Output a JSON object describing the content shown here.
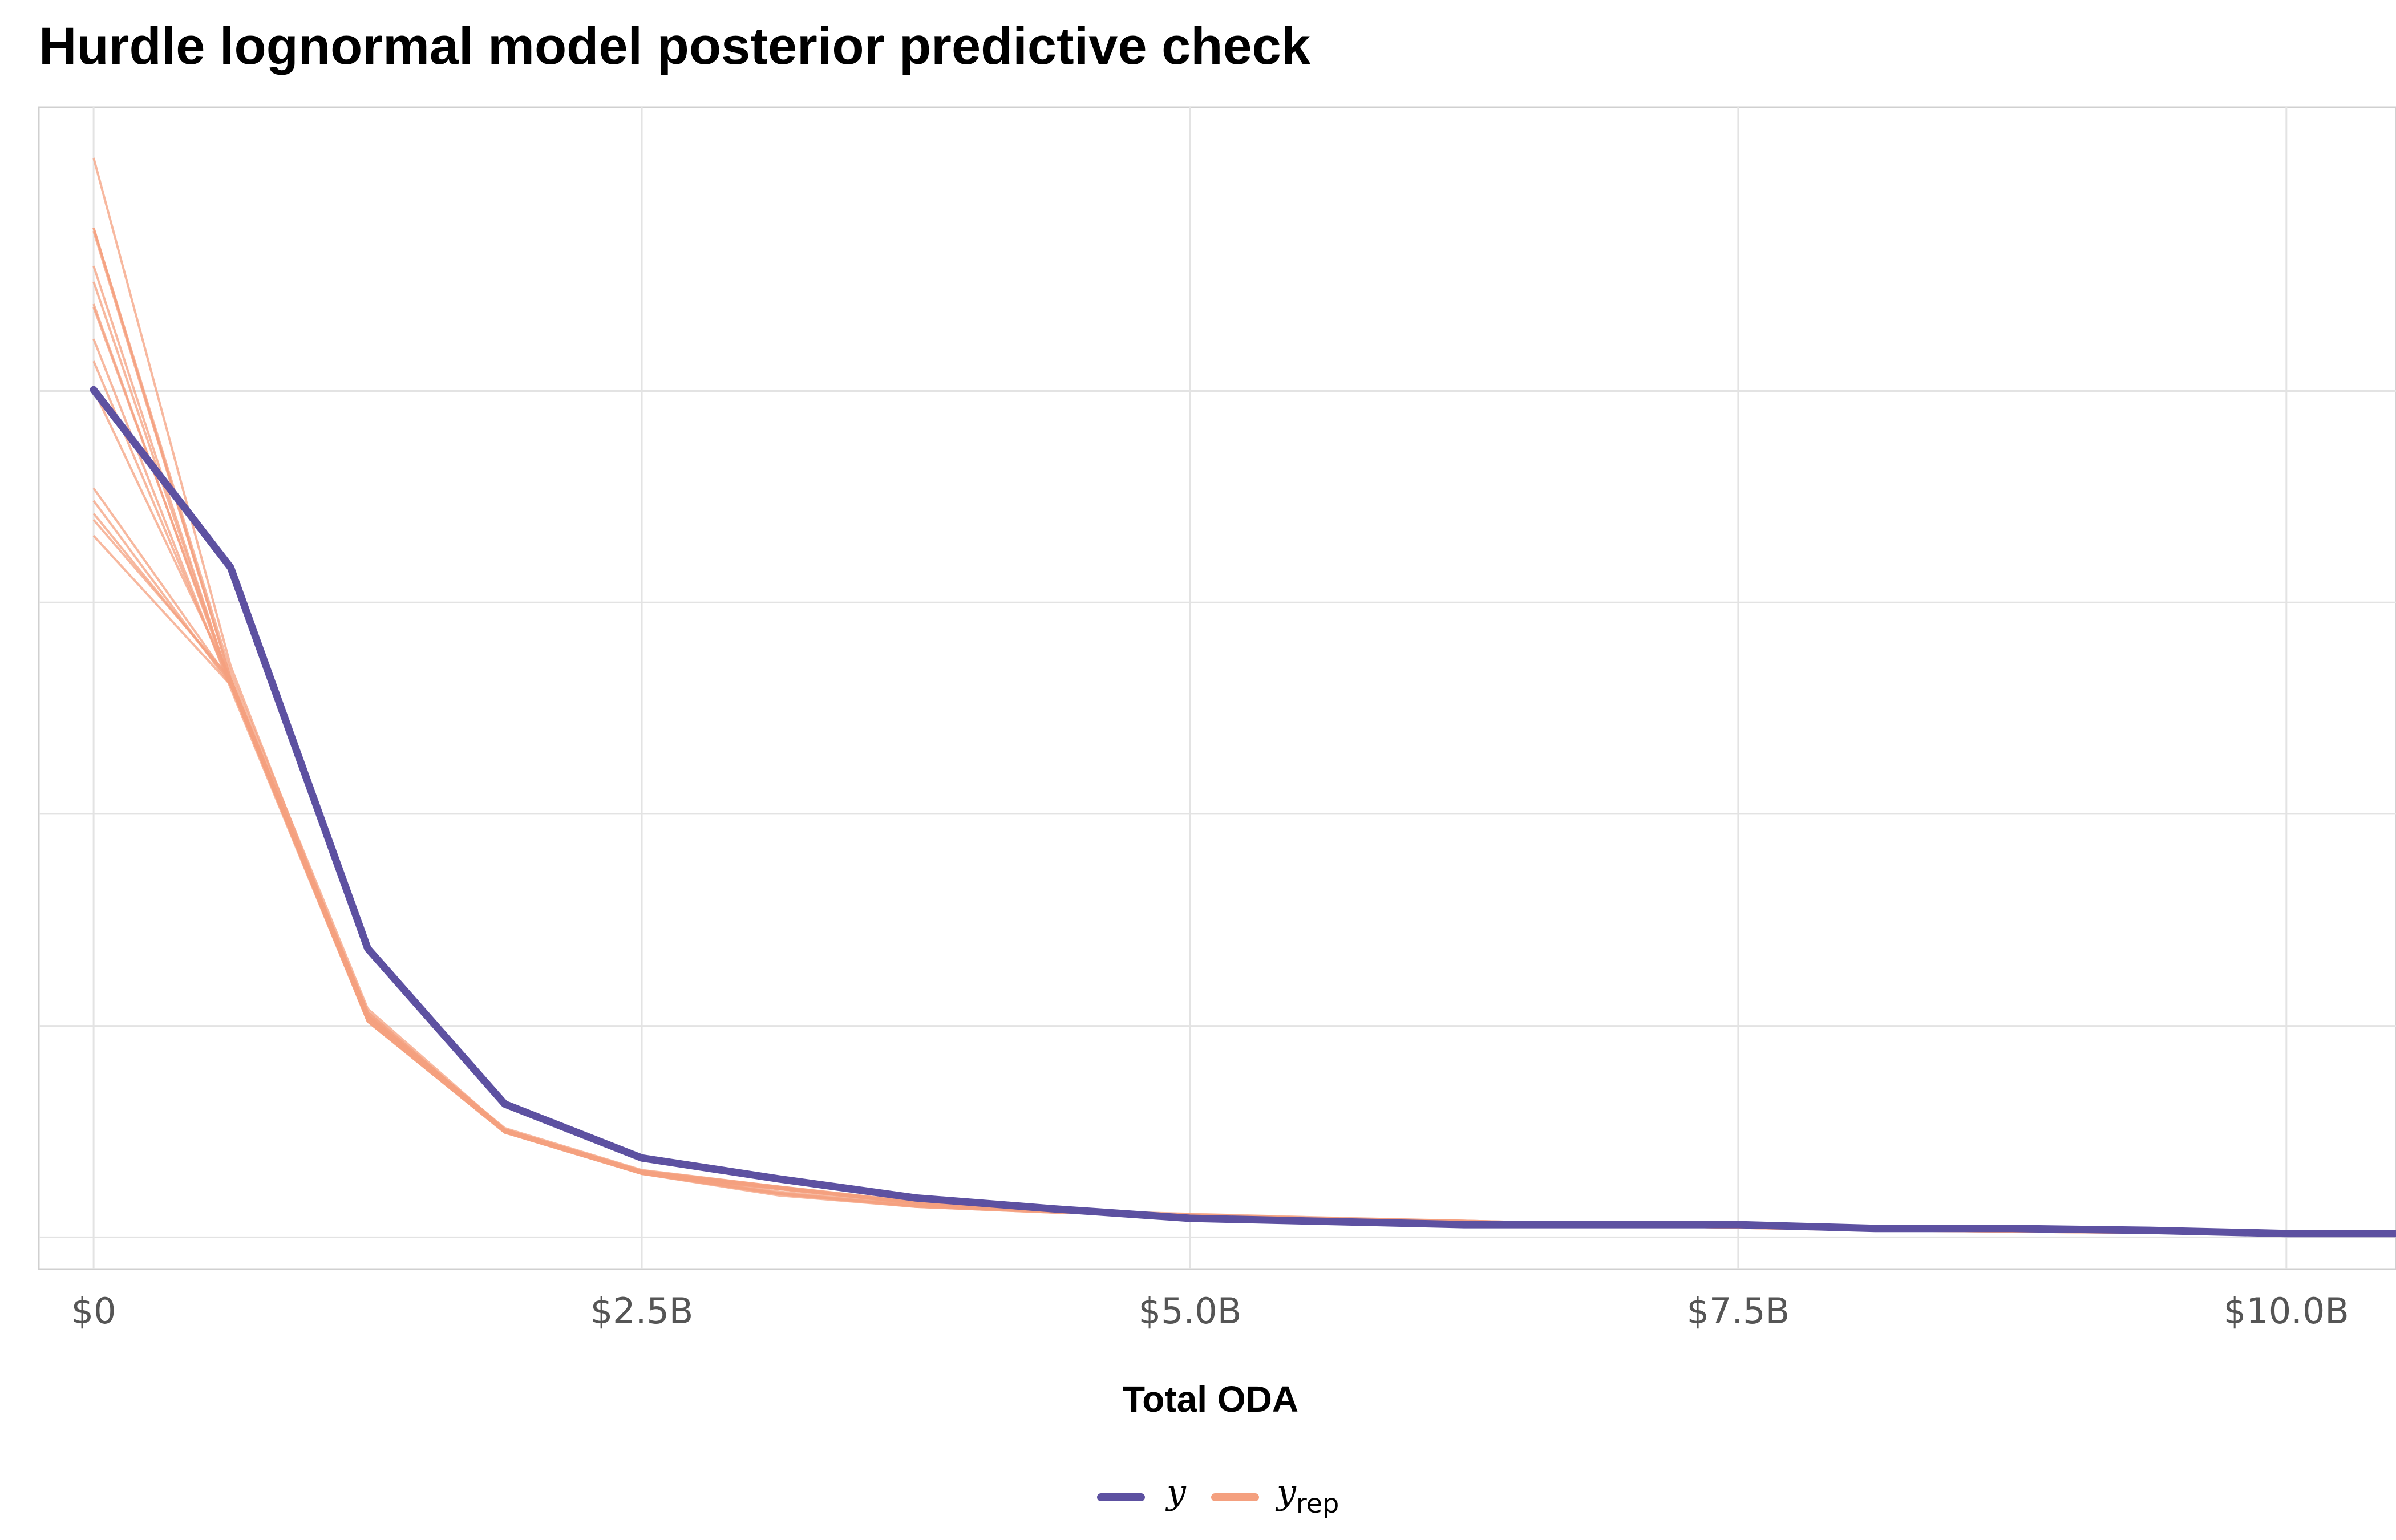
{
  "chart_data": {
    "type": "line",
    "title": "Hurdle lognormal model posterior predictive check",
    "xlabel": "Total ODA",
    "ylabel": "",
    "xlim": [
      -0.25,
      10.5
    ],
    "ylim": [
      -0.05,
      1.78
    ],
    "x_ticks": [
      {
        "value": 0,
        "label": "$0"
      },
      {
        "value": 2.5,
        "label": "$2.5B"
      },
      {
        "value": 5.0,
        "label": "$5.0B"
      },
      {
        "value": 7.5,
        "label": "$7.5B"
      },
      {
        "value": 10.0,
        "label": "$10.0B"
      }
    ],
    "y_grid": [
      0,
      0.333,
      0.667,
      1.0,
      1.333
    ],
    "x_units": "billions USD",
    "colors": {
      "y": "#5D51A1",
      "y_rep": "#F4A07F"
    },
    "legend": [
      {
        "key": "y",
        "label": "y"
      },
      {
        "key": "y_rep",
        "label": "y",
        "subscript": "rep"
      }
    ],
    "series_y": {
      "name": "y",
      "x": [
        0,
        0.625,
        1.25,
        1.875,
        2.5,
        3.125,
        3.75,
        4.375,
        5.0,
        5.625,
        6.25,
        6.875,
        7.5,
        8.125,
        8.75,
        9.375,
        10.0,
        10.5
      ],
      "values": [
        1.335,
        1.055,
        0.455,
        0.21,
        0.125,
        0.092,
        0.062,
        0.045,
        0.03,
        0.025,
        0.02,
        0.02,
        0.02,
        0.014,
        0.014,
        0.011,
        0.006,
        0.006
      ]
    },
    "series_y_rep": [
      {
        "name": "y_rep 1",
        "x": [
          0,
          0.625,
          1.25,
          1.875,
          2.5,
          3.125,
          3.75,
          4.375,
          5.0,
          5.625,
          6.25,
          6.875,
          7.5,
          8.125,
          8.75,
          9.375,
          10.0,
          10.5
        ],
        "values": [
          1.59,
          0.88,
          0.35,
          0.17,
          0.105,
          0.08,
          0.055,
          0.042,
          0.036,
          0.03,
          0.025,
          0.02,
          0.016,
          0.012,
          0.01,
          0.008,
          0.006,
          0.005
        ]
      },
      {
        "name": "y_rep 2",
        "x": [
          0,
          0.625,
          1.25,
          1.875,
          2.5,
          3.125,
          3.75,
          4.375,
          5.0,
          5.625,
          6.25,
          6.875,
          7.5,
          8.125,
          8.75,
          9.375,
          10.0,
          10.5
        ],
        "values": [
          1.47,
          0.87,
          0.34,
          0.165,
          0.1,
          0.076,
          0.053,
          0.04,
          0.034,
          0.029,
          0.024,
          0.019,
          0.015,
          0.011,
          0.009,
          0.007,
          0.005,
          0.005
        ]
      },
      {
        "name": "y_rep 3",
        "x": [
          0,
          0.625,
          1.25,
          1.875,
          2.5,
          3.125,
          3.75,
          4.375,
          5.0,
          5.625,
          6.25,
          6.875,
          7.5,
          8.125,
          8.75,
          9.375,
          10.0,
          10.5
        ],
        "values": [
          1.465,
          0.875,
          0.345,
          0.168,
          0.102,
          0.078,
          0.054,
          0.041,
          0.035,
          0.03,
          0.025,
          0.02,
          0.016,
          0.012,
          0.01,
          0.008,
          0.006,
          0.005
        ]
      },
      {
        "name": "y_rep 4",
        "x": [
          0,
          0.625,
          1.25,
          1.875,
          2.5,
          3.125,
          3.75,
          4.375,
          5.0,
          5.625,
          6.25,
          6.875,
          7.5,
          8.125,
          8.75,
          9.375,
          10.0,
          10.5
        ],
        "values": [
          1.415,
          0.865,
          0.34,
          0.165,
          0.101,
          0.077,
          0.053,
          0.04,
          0.034,
          0.029,
          0.024,
          0.019,
          0.015,
          0.011,
          0.009,
          0.007,
          0.005,
          0.004
        ]
      },
      {
        "name": "y_rep 5",
        "x": [
          0,
          0.625,
          1.25,
          1.875,
          2.5,
          3.125,
          3.75,
          4.375,
          5.0,
          5.625,
          6.25,
          6.875,
          7.5,
          8.125,
          8.75,
          9.375,
          10.0,
          10.5
        ],
        "values": [
          1.38,
          0.87,
          0.345,
          0.17,
          0.104,
          0.079,
          0.055,
          0.042,
          0.036,
          0.03,
          0.025,
          0.02,
          0.016,
          0.012,
          0.01,
          0.008,
          0.006,
          0.005
        ]
      },
      {
        "name": "y_rep 6",
        "x": [
          0,
          0.625,
          1.25,
          1.875,
          2.5,
          3.125,
          3.75,
          4.375,
          5.0,
          5.625,
          6.25,
          6.875,
          7.5,
          8.125,
          8.75,
          9.375,
          10.0,
          10.5
        ],
        "values": [
          1.335,
          0.88,
          0.35,
          0.172,
          0.106,
          0.08,
          0.056,
          0.043,
          0.037,
          0.031,
          0.026,
          0.021,
          0.017,
          0.013,
          0.011,
          0.009,
          0.007,
          0.006
        ]
      },
      {
        "name": "y_rep 7",
        "x": [
          0,
          0.625,
          1.25,
          1.875,
          2.5,
          3.125,
          3.75,
          4.375,
          5.0,
          5.625,
          6.25,
          6.875,
          7.5,
          8.125,
          8.75,
          9.375,
          10.0,
          10.5
        ],
        "values": [
          1.18,
          0.875,
          0.355,
          0.168,
          0.1,
          0.072,
          0.05,
          0.04,
          0.035,
          0.03,
          0.026,
          0.021,
          0.017,
          0.013,
          0.01,
          0.008,
          0.006,
          0.005
        ]
      },
      {
        "name": "y_rep 8",
        "x": [
          0,
          0.625,
          1.25,
          1.875,
          2.5,
          3.125,
          3.75,
          4.375,
          5.0,
          5.625,
          6.25,
          6.875,
          7.5,
          8.125,
          8.75,
          9.375,
          10.0,
          10.5
        ],
        "values": [
          1.16,
          0.87,
          0.345,
          0.166,
          0.1,
          0.066,
          0.048,
          0.039,
          0.034,
          0.029,
          0.025,
          0.02,
          0.016,
          0.012,
          0.01,
          0.008,
          0.006,
          0.005
        ]
      },
      {
        "name": "y_rep 9",
        "x": [
          0,
          0.625,
          1.25,
          1.875,
          2.5,
          3.125,
          3.75,
          4.375,
          5.0,
          5.625,
          6.25,
          6.875,
          7.5,
          8.125,
          8.75,
          9.375,
          10.0,
          10.5
        ],
        "values": [
          1.14,
          0.875,
          0.35,
          0.167,
          0.101,
          0.069,
          0.049,
          0.04,
          0.034,
          0.029,
          0.025,
          0.02,
          0.016,
          0.012,
          0.01,
          0.008,
          0.006,
          0.005
        ]
      },
      {
        "name": "y_rep 10",
        "x": [
          0,
          0.625,
          1.25,
          1.875,
          2.5,
          3.125,
          3.75,
          4.375,
          5.0,
          5.625,
          6.25,
          6.875,
          7.5,
          8.125,
          8.75,
          9.375,
          10.0,
          10.5
        ],
        "values": [
          1.13,
          0.88,
          0.355,
          0.168,
          0.102,
          0.07,
          0.05,
          0.041,
          0.035,
          0.03,
          0.026,
          0.021,
          0.017,
          0.013,
          0.011,
          0.009,
          0.007,
          0.006
        ]
      },
      {
        "name": "y_rep 11",
        "x": [
          0,
          0.625,
          1.25,
          1.875,
          2.5,
          3.125,
          3.75,
          4.375,
          5.0,
          5.625,
          6.25,
          6.875,
          7.5,
          8.125,
          8.75,
          9.375,
          10.0,
          10.5
        ],
        "values": [
          1.105,
          0.87,
          0.34,
          0.165,
          0.1,
          0.068,
          0.048,
          0.039,
          0.034,
          0.029,
          0.025,
          0.02,
          0.016,
          0.012,
          0.01,
          0.008,
          0.006,
          0.005
        ]
      },
      {
        "name": "y_rep 12",
        "x": [
          0,
          0.625,
          1.25,
          1.875,
          2.5,
          3.125,
          3.75,
          4.375,
          5.0,
          5.625,
          6.25,
          6.875,
          7.5,
          8.125,
          8.75,
          9.375,
          10.0,
          10.5
        ],
        "values": [
          1.59,
          0.89,
          0.36,
          0.17,
          0.104,
          0.078,
          0.055,
          0.042,
          0.036,
          0.03,
          0.025,
          0.02,
          0.016,
          0.012,
          0.01,
          0.008,
          0.006,
          0.005
        ]
      },
      {
        "name": "y_rep 13",
        "x": [
          0,
          0.625,
          1.25,
          1.875,
          2.5,
          3.125,
          3.75,
          4.375,
          5.0,
          5.625,
          6.25,
          6.875,
          7.5,
          8.125,
          8.75,
          9.375,
          10.0,
          10.5
        ],
        "values": [
          1.585,
          0.88,
          0.35,
          0.168,
          0.103,
          0.077,
          0.054,
          0.041,
          0.035,
          0.03,
          0.025,
          0.02,
          0.016,
          0.012,
          0.01,
          0.008,
          0.006,
          0.005
        ]
      },
      {
        "name": "y_rep 14",
        "x": [
          0,
          0.625,
          1.25,
          1.875,
          2.5,
          3.125,
          3.75,
          4.375,
          5.0,
          5.625,
          6.25,
          6.875,
          7.5,
          8.125,
          8.75,
          9.375,
          10.0,
          10.5
        ],
        "values": [
          1.53,
          0.87,
          0.342,
          0.166,
          0.101,
          0.076,
          0.053,
          0.04,
          0.034,
          0.029,
          0.024,
          0.019,
          0.015,
          0.011,
          0.009,
          0.007,
          0.005,
          0.004
        ]
      },
      {
        "name": "y_rep 15",
        "x": [
          0,
          0.625,
          1.25,
          1.875,
          2.5,
          3.125,
          3.75,
          4.375,
          5.0,
          5.625,
          6.25,
          6.875,
          7.5,
          8.125,
          8.75,
          9.375,
          10.0,
          10.5
        ],
        "values": [
          1.505,
          0.872,
          0.348,
          0.169,
          0.103,
          0.078,
          0.054,
          0.041,
          0.035,
          0.03,
          0.025,
          0.02,
          0.016,
          0.012,
          0.01,
          0.008,
          0.006,
          0.005
        ]
      },
      {
        "name": "y_rep 16",
        "x": [
          0,
          0.625,
          1.25,
          1.875,
          2.5,
          3.125,
          3.75,
          4.375,
          5.0,
          5.625,
          6.25,
          6.875,
          7.5,
          8.125,
          8.75,
          9.375,
          10.0,
          10.5
        ],
        "values": [
          1.7,
          0.9,
          0.345,
          0.168,
          0.102,
          0.077,
          0.054,
          0.041,
          0.035,
          0.03,
          0.025,
          0.02,
          0.016,
          0.012,
          0.01,
          0.008,
          0.006,
          0.005
        ]
      }
    ]
  }
}
